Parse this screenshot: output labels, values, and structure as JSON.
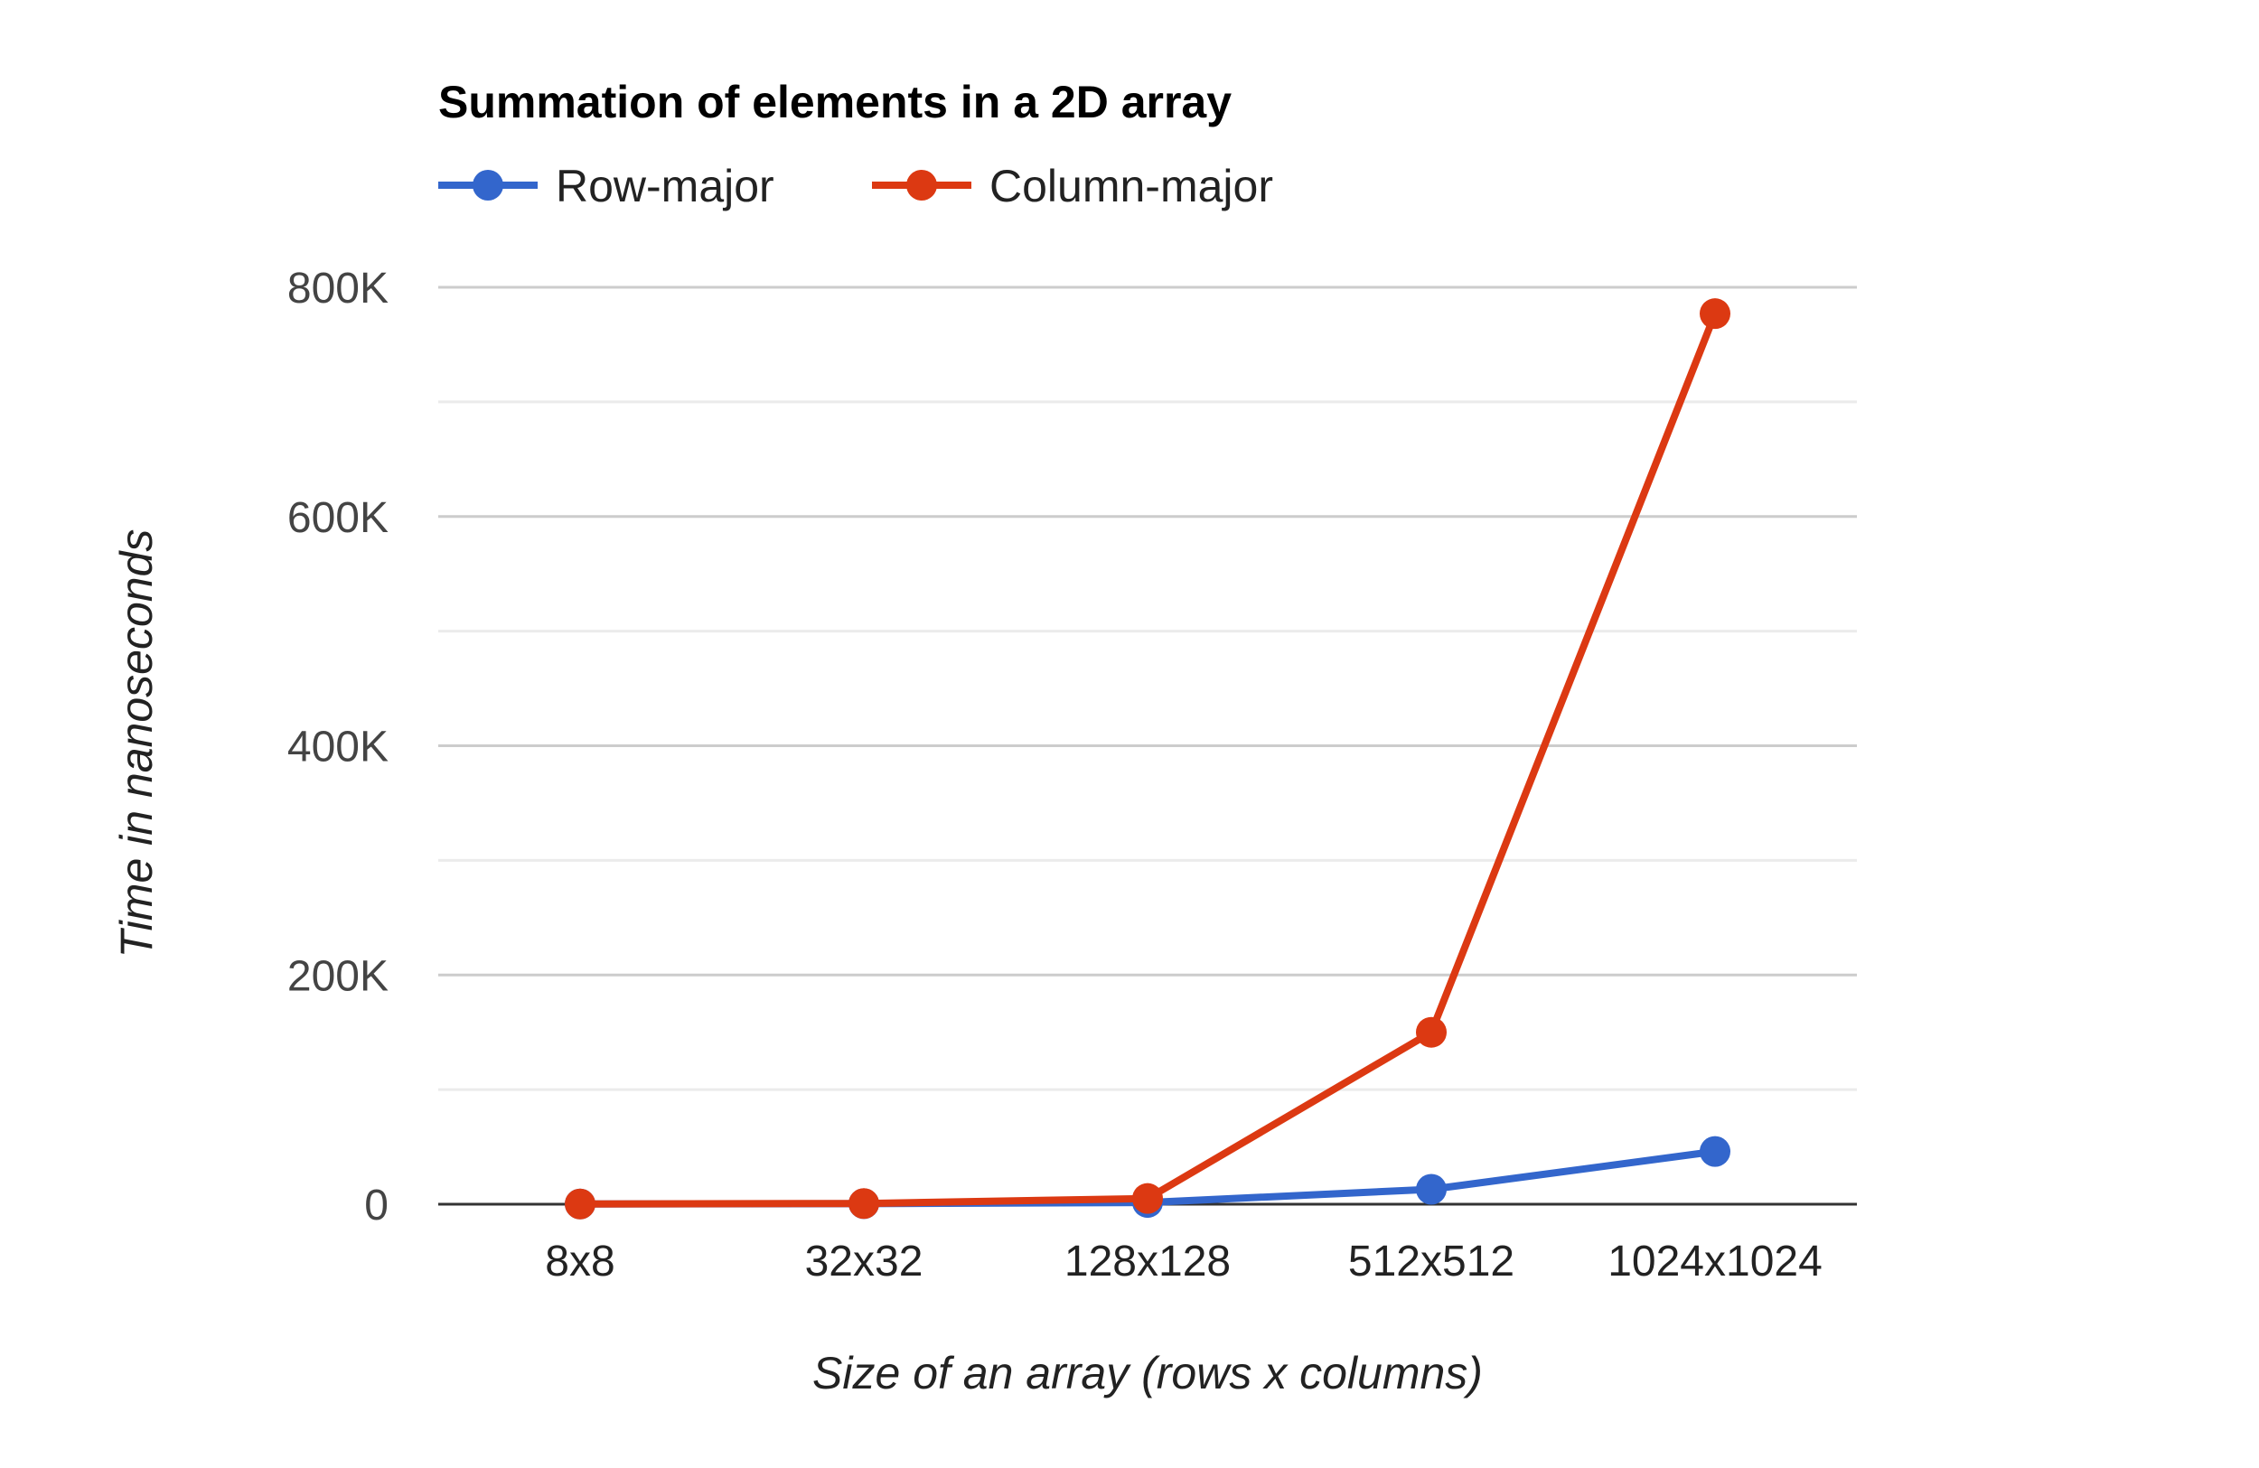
{
  "chart_data": {
    "type": "line",
    "title": "Summation of elements in a 2D array",
    "xlabel": "Size of an array (rows x columns)",
    "ylabel": "Time in nanoseconds",
    "categories": [
      "8x8",
      "32x32",
      "128x128",
      "512x512",
      "1024x1024"
    ],
    "series": [
      {
        "name": "Row-major",
        "color": "#3366cc",
        "values": [
          200,
          500,
          1500,
          13000,
          46000
        ]
      },
      {
        "name": "Column-major",
        "color": "#dc3912",
        "values": [
          200,
          600,
          5000,
          150000,
          777000
        ]
      }
    ],
    "ylim": [
      0,
      800000
    ],
    "yticks": [
      0,
      200000,
      400000,
      600000,
      800000
    ],
    "ytick_labels": [
      "0",
      "200K",
      "400K",
      "600K",
      "800K"
    ],
    "minor_gridlines": [
      100000,
      300000,
      500000,
      700000
    ],
    "grid": true,
    "legend": "top-left"
  }
}
